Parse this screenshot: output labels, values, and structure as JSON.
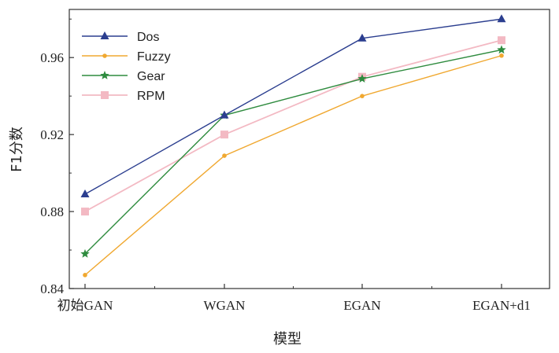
{
  "chart_data": {
    "type": "line",
    "categories": [
      "初始GAN",
      "WGAN",
      "EGAN",
      "EGAN+d1"
    ],
    "xlabel": "模型",
    "ylabel": "F1分数",
    "ylim": [
      0.84,
      0.985
    ],
    "yticks": [
      "0.84",
      "0.88",
      "0.92",
      "0.96"
    ],
    "grid": false,
    "legend_position": "top-left",
    "series": [
      {
        "name": "Dos",
        "color": "#2b3e8f",
        "marker": "triangle",
        "values": [
          0.889,
          0.93,
          0.97,
          0.98
        ]
      },
      {
        "name": "Fuzzy",
        "color": "#f0a830",
        "marker": "dot",
        "values": [
          0.847,
          0.909,
          0.94,
          0.961
        ]
      },
      {
        "name": "Gear",
        "color": "#2e8b3e",
        "marker": "star",
        "values": [
          0.858,
          0.93,
          0.949,
          0.964
        ]
      },
      {
        "name": "RPM",
        "color": "#f3b9c3",
        "marker": "square",
        "values": [
          0.88,
          0.92,
          0.95,
          0.969
        ]
      }
    ]
  }
}
